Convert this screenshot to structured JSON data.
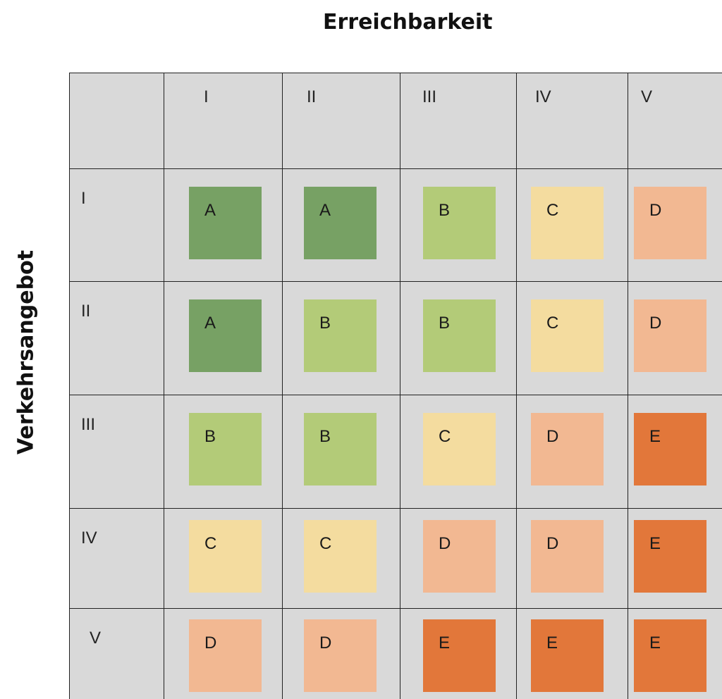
{
  "title_x": "Erreichbarkeit",
  "title_y": "Verkehrsangebot",
  "columns": [
    "I",
    "II",
    "III",
    "IV",
    "V"
  ],
  "rows": [
    "I",
    "II",
    "III",
    "IV",
    "V"
  ],
  "colors": {
    "A": "#77a164",
    "B": "#b3cb78",
    "C": "#f4dc9f",
    "D": "#f2b892",
    "E": "#e2773a"
  },
  "grid": [
    [
      "A",
      "A",
      "B",
      "C",
      "D"
    ],
    [
      "A",
      "B",
      "B",
      "C",
      "D"
    ],
    [
      "B",
      "B",
      "C",
      "D",
      "E"
    ],
    [
      "C",
      "C",
      "D",
      "D",
      "E"
    ],
    [
      "D",
      "D",
      "E",
      "E",
      "E"
    ]
  ]
}
